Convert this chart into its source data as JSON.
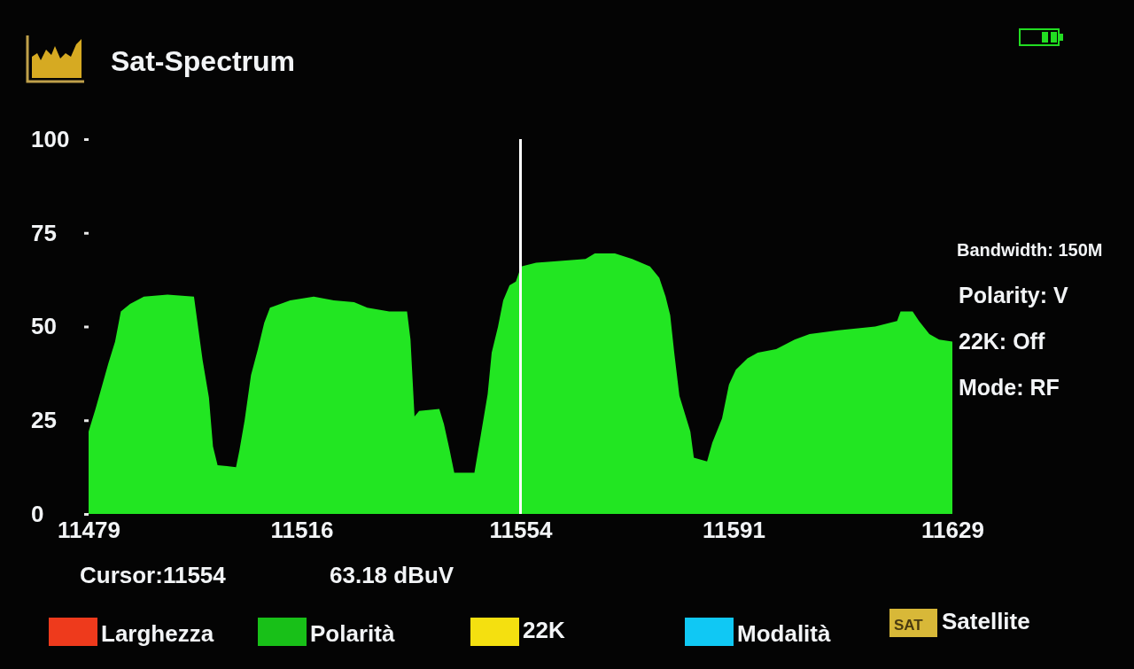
{
  "chart_data": {
    "type": "area",
    "title": "Sat-Spectrum",
    "x": [
      11479.0,
      11480.2,
      11481.3,
      11482.4,
      11483.6,
      11484.6,
      11486.2,
      11488.6,
      11492.7,
      11497.3,
      11498.0,
      11498.8,
      11499.9,
      11500.6,
      11501.4,
      11504.6,
      11505.2,
      11506.1,
      11507.2,
      11508.4,
      11509.5,
      11510.5,
      11514.0,
      11518.1,
      11521.6,
      11525.1,
      11527.4,
      11531.2,
      11534.3,
      11534.9,
      11535.6,
      11536.4,
      11539.9,
      11540.7,
      11541.7,
      11542.5,
      11546.0,
      11547.1,
      11548.3,
      11549.0,
      11550.1,
      11551.0,
      11552.1,
      11553.2,
      11554.1,
      11556.7,
      11560.8,
      11565.3,
      11566.9,
      11570.4,
      11573.4,
      11576.5,
      11578.1,
      11579.2,
      11580.0,
      11580.7,
      11581.6,
      11583.5,
      11584.1,
      11586.4,
      11587.3,
      11589.0,
      11590.2,
      11591.4,
      11593.4,
      11595.2,
      11598.4,
      11601.6,
      11604.2,
      11609.2,
      11615.6,
      11619.4,
      11620.0,
      11622.1,
      11623.2,
      11625.0,
      11626.7,
      11629.0
    ],
    "series": [
      {
        "color": "#22e622",
        "values": [
          22,
          28,
          34,
          40,
          46,
          54,
          56,
          58,
          58.5,
          58,
          50,
          41,
          31,
          18,
          13,
          12.5,
          17,
          25,
          37,
          44,
          51,
          55,
          57,
          58,
          57,
          56.5,
          55,
          54,
          54,
          46.5,
          26,
          27.5,
          28,
          24,
          17,
          11,
          11,
          21,
          32,
          43,
          50,
          57,
          61,
          62,
          66,
          67,
          67.5,
          68,
          69.5,
          69.5,
          68,
          66,
          63,
          58,
          53,
          43,
          31.5,
          22,
          15,
          14,
          19,
          25.5,
          34.5,
          38.5,
          41.5,
          43,
          44,
          46.5,
          48,
          49,
          50,
          51.5,
          54,
          54,
          51.5,
          48,
          46.5,
          46
        ]
      }
    ],
    "xlim": [
      11479,
      11629
    ],
    "xticks": [
      11479,
      11516,
      11554,
      11591,
      11629
    ],
    "ylim": [
      0,
      100
    ],
    "yticks": [
      0,
      25,
      50,
      75,
      100
    ],
    "ref_lines": [
      {
        "axis": "x",
        "value": 11554,
        "color": "#ffffff"
      }
    ],
    "annotations": [
      "Cursor:11554",
      "63.18 dBuV",
      "Bandwidth: 150M",
      "Polarity: V",
      "22K: Off",
      "Mode: RF",
      "Larghezza",
      "Polarità",
      "22K",
      "Modalità",
      "SAT",
      "Satellite"
    ],
    "grid": false
  }
}
